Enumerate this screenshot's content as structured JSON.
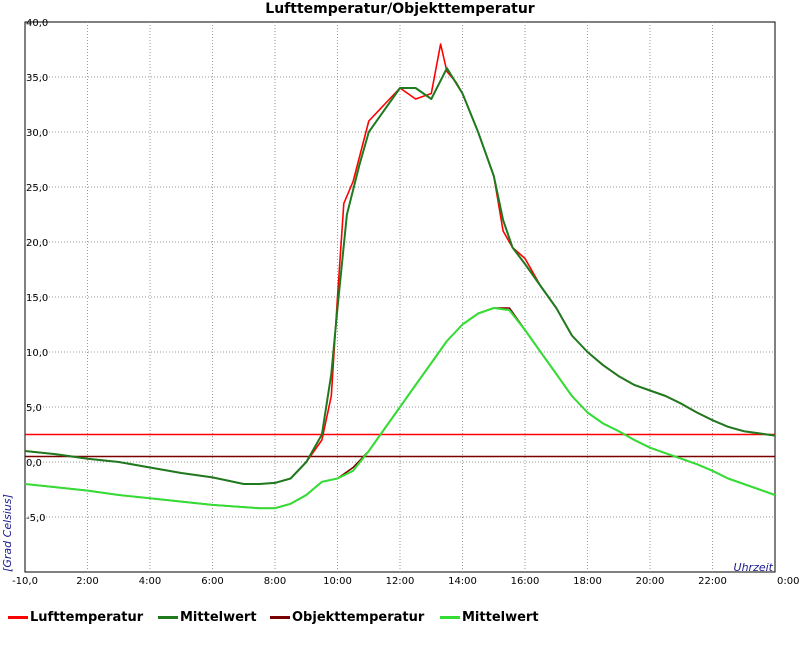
{
  "chart_data": {
    "type": "line",
    "title": "Lufttemperatur/Objekttemperatur",
    "xlabel": "Uhrzeit",
    "ylabel": "[Grad Celsius]",
    "xlim": [
      0,
      24
    ],
    "ylim": [
      -10,
      40
    ],
    "grid": true,
    "x_tick_labels": [
      "-10,0",
      "2:00",
      "4:00",
      "6:00",
      "8:00",
      "10:00",
      "12:00",
      "14:00",
      "16:00",
      "18:00",
      "20:00",
      "22:00",
      "0:00"
    ],
    "y_tick_labels": [
      "40,0",
      "35,0",
      "30,0",
      "25,0",
      "20,0",
      "15,0",
      "10,0",
      "5,0",
      "0,0",
      "-5,0"
    ],
    "y_tick_values": [
      40,
      35,
      30,
      25,
      20,
      15,
      10,
      5,
      0,
      -5
    ],
    "legend_position": "bottom",
    "reference_lines": [
      {
        "y": 2.5,
        "color": "#ff0000"
      },
      {
        "y": 0.5,
        "color": "#7a0000"
      }
    ],
    "series": [
      {
        "name": "Lufttemperatur",
        "color": "#ff0000",
        "x": [
          0,
          1,
          2,
          3,
          4,
          5,
          6,
          7,
          7.5,
          8,
          8.5,
          9,
          9.5,
          9.8,
          10,
          10.2,
          10.5,
          11,
          11.5,
          12,
          12.5,
          13,
          13.3,
          13.5,
          13.8,
          14,
          14.5,
          15,
          15.3,
          15.6,
          16,
          16.5,
          17,
          17.5,
          18,
          18.5,
          19,
          19.5,
          20,
          20.5,
          21,
          21.5,
          22,
          22.5,
          23,
          23.5,
          24
        ],
        "y": [
          1.0,
          0.7,
          0.3,
          0,
          -0.5,
          -1.0,
          -1.4,
          -2.0,
          -2.0,
          -1.9,
          -1.5,
          0,
          2.0,
          6.0,
          15.0,
          23.5,
          25.5,
          31.0,
          32.5,
          34.0,
          33.0,
          33.5,
          38.0,
          35.5,
          34.5,
          33.5,
          30.0,
          26.0,
          21.0,
          19.5,
          18.5,
          16.0,
          14.0,
          11.5,
          10.0,
          8.8,
          7.8,
          7.0,
          6.5,
          6.0,
          5.3,
          4.5,
          3.8,
          3.2,
          2.8,
          2.6,
          2.4
        ]
      },
      {
        "name": "Mittelwert",
        "color": "#1f7a1f",
        "x": [
          0,
          1,
          2,
          3,
          4,
          5,
          6,
          7,
          7.5,
          8,
          8.5,
          9,
          9.5,
          9.8,
          10,
          10.3,
          10.7,
          11,
          11.5,
          12,
          12.5,
          13,
          13.5,
          14,
          14.5,
          15,
          15.3,
          15.6,
          16,
          16.5,
          17,
          17.5,
          18,
          18.5,
          19,
          19.5,
          20,
          20.5,
          21,
          21.5,
          22,
          22.5,
          23,
          23.5,
          24
        ],
        "y": [
          1.0,
          0.7,
          0.3,
          0,
          -0.5,
          -1.0,
          -1.4,
          -2.0,
          -2.0,
          -1.9,
          -1.5,
          0,
          2.5,
          8.0,
          14.0,
          22.5,
          27.0,
          30.0,
          32.0,
          34.0,
          34.0,
          33.0,
          35.8,
          33.5,
          30.0,
          26.0,
          22.0,
          19.5,
          18.0,
          16.0,
          14.0,
          11.5,
          10.0,
          8.8,
          7.8,
          7.0,
          6.5,
          6.0,
          5.3,
          4.5,
          3.8,
          3.2,
          2.8,
          2.6,
          2.4
        ]
      },
      {
        "name": "Objekttemperatur",
        "color": "#7a0000",
        "x": [
          0,
          1,
          2,
          3,
          4,
          5,
          6,
          7,
          7.5,
          8,
          8.5,
          9,
          9.5,
          10,
          10.5,
          11,
          11.5,
          12,
          12.5,
          13,
          13.5,
          14,
          14.5,
          15,
          15.5,
          16,
          16.5,
          17,
          17.5,
          18,
          18.5,
          19,
          19.5,
          20,
          20.5,
          21,
          21.5,
          22,
          22.5,
          23,
          23.5,
          24
        ],
        "y": [
          -2.0,
          -2.3,
          -2.6,
          -3.0,
          -3.3,
          -3.6,
          -3.9,
          -4.1,
          -4.2,
          -4.2,
          -3.8,
          -3.0,
          -1.8,
          -1.5,
          -0.5,
          1.0,
          3.0,
          5.0,
          7.0,
          9.0,
          11.0,
          12.5,
          13.5,
          14.0,
          14.0,
          12.0,
          10.0,
          8.0,
          6.0,
          4.5,
          3.5,
          2.8,
          2.0,
          1.3,
          0.8,
          0.3,
          -0.2,
          -0.8,
          -1.5,
          -2.0,
          -2.5,
          -3.0
        ]
      },
      {
        "name": "Mittelwert",
        "color": "#33dd33",
        "x": [
          0,
          1,
          2,
          3,
          4,
          5,
          6,
          7,
          7.5,
          8,
          8.5,
          9,
          9.5,
          10,
          10.5,
          11,
          11.5,
          12,
          12.5,
          13,
          13.5,
          14,
          14.5,
          15,
          15.5,
          16,
          16.5,
          17,
          17.5,
          18,
          18.5,
          19,
          19.5,
          20,
          20.5,
          21,
          21.5,
          22,
          22.5,
          23,
          23.5,
          24
        ],
        "y": [
          -2.0,
          -2.3,
          -2.6,
          -3.0,
          -3.3,
          -3.6,
          -3.9,
          -4.1,
          -4.2,
          -4.2,
          -3.8,
          -3.0,
          -1.8,
          -1.5,
          -0.8,
          1.0,
          3.0,
          5.0,
          7.0,
          9.0,
          11.0,
          12.5,
          13.5,
          14.0,
          13.8,
          12.0,
          10.0,
          8.0,
          6.0,
          4.5,
          3.5,
          2.8,
          2.0,
          1.3,
          0.8,
          0.3,
          -0.2,
          -0.8,
          -1.5,
          -2.0,
          -2.5,
          -3.0
        ]
      }
    ]
  }
}
